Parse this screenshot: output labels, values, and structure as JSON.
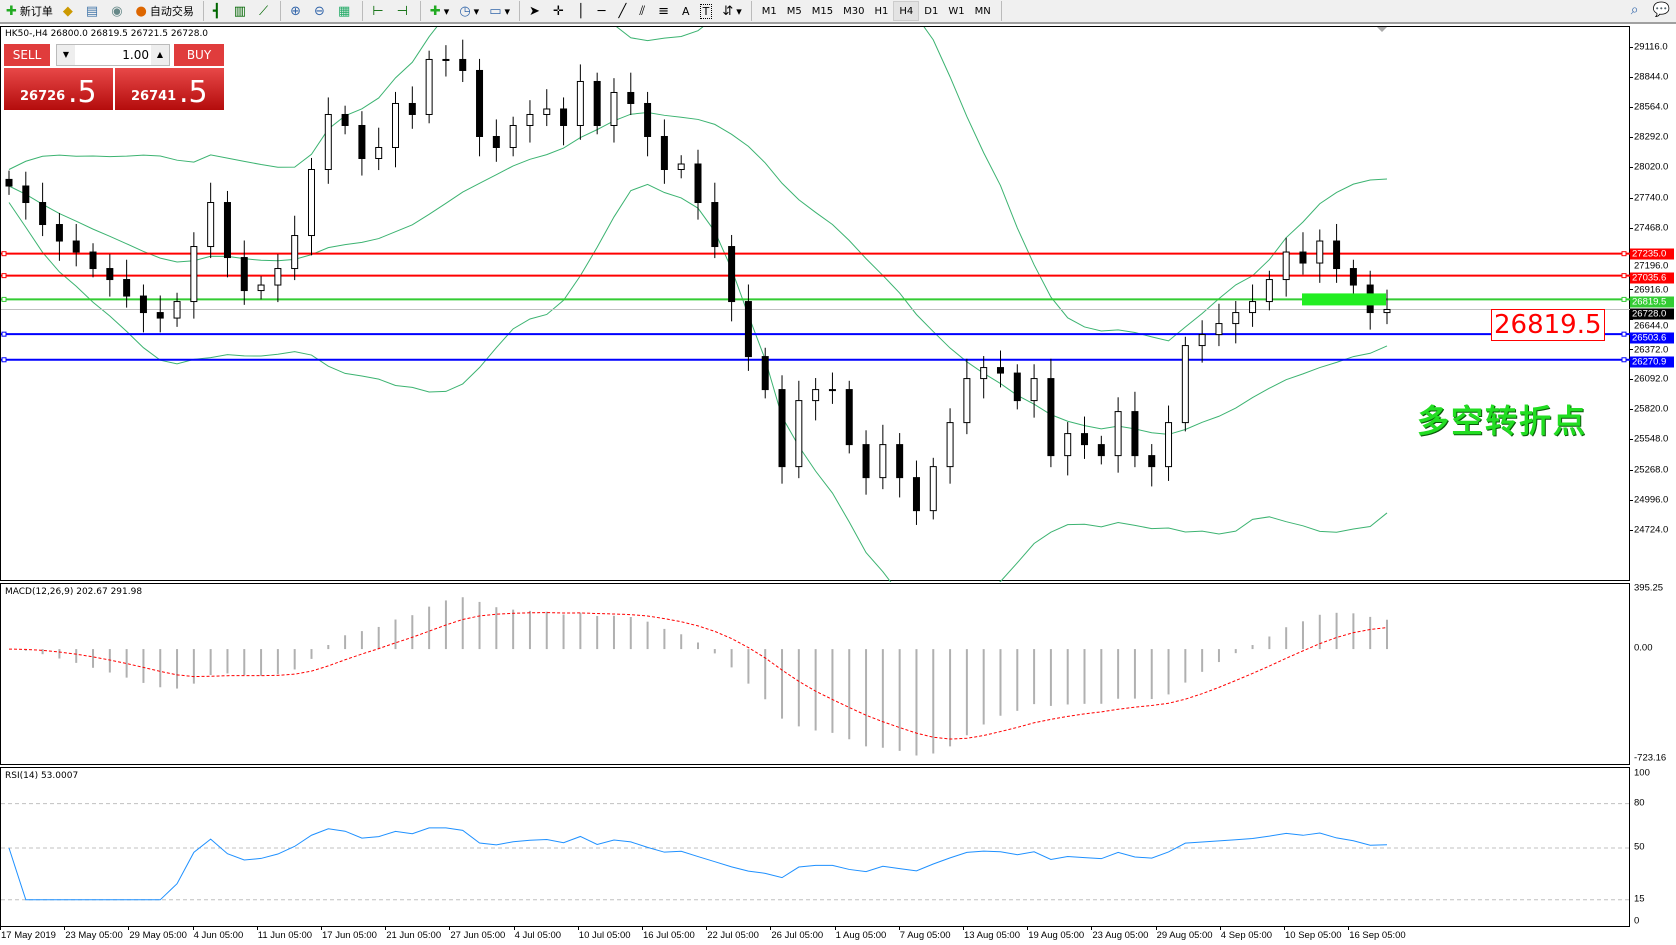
{
  "toolbar": {
    "new_order": "新订单",
    "auto_trading": "自动交易",
    "icons": [
      "new-order-icon",
      "history-center-icon",
      "market-watch-icon",
      "signals-icon",
      "auto-trading-icon",
      "bar-chart-icon",
      "candlestick-icon",
      "line-chart-icon",
      "zoom-in-icon",
      "zoom-out-icon",
      "tile-windows-icon",
      "chart-shift-icon",
      "autoscroll-icon",
      "indicators-icon",
      "periods-icon",
      "templates-icon",
      "cursor-icon",
      "crosshair-icon",
      "vertical-line-icon",
      "horizontal-line-icon",
      "trendline-icon",
      "equidistant-channel-icon",
      "fibonacci-icon",
      "text-icon",
      "text-label-icon",
      "arrows-icon",
      "search-icon",
      "chat-icon"
    ],
    "text_tool": "A",
    "label_tool": "T",
    "timeframes": [
      "M1",
      "M5",
      "M15",
      "M30",
      "H1",
      "H4",
      "D1",
      "W1",
      "MN"
    ],
    "active_timeframe": "H4"
  },
  "chart": {
    "header": "HK50-,H4  26800.0 26819.5 26721.5 26728.0",
    "trade_panel": {
      "sell_label": "SELL",
      "buy_label": "BUY",
      "lot": "1.00",
      "sell_price_main": "26726",
      "sell_price_pips": ".5",
      "buy_price_main": "26741",
      "buy_price_pips": ".5"
    },
    "price_axis": [
      "29116.0",
      "28844.0",
      "28564.0",
      "28292.0",
      "28020.0",
      "27740.0",
      "27468.0",
      "27196.0",
      "26916.0",
      "26644.0",
      "26372.0",
      "26092.0",
      "25820.0",
      "25548.0",
      "25268.0",
      "24996.0",
      "24724.0"
    ],
    "levels": [
      {
        "price": "27235.0",
        "color": "#ff0000"
      },
      {
        "price": "27035.6",
        "color": "#ff0000"
      },
      {
        "price": "26819.5",
        "color": "#33cc33"
      },
      {
        "price": "26728.0",
        "color": "#000000"
      },
      {
        "price": "26503.6",
        "color": "#0000ff"
      },
      {
        "price": "26270.9",
        "color": "#0000ff"
      }
    ],
    "price_label": "26819.5",
    "annotation": "多空转折点",
    "closes": [
      27850,
      27700,
      27500,
      27350,
      27250,
      27100,
      27000,
      26850,
      26700,
      26650,
      26800,
      27300,
      27700,
      27200,
      26900,
      26950,
      27100,
      27400,
      28000,
      28500,
      28400,
      28100,
      28200,
      28600,
      28500,
      29000,
      29000,
      28900,
      28300,
      28200,
      28400,
      28500,
      28550,
      28400,
      28800,
      28400,
      28700,
      28600,
      28300,
      28000,
      28050,
      27700,
      27300,
      26800,
      26300,
      26000,
      25300,
      25900,
      26000,
      26000,
      25500,
      25200,
      25500,
      25200,
      24900,
      25300,
      25700,
      26100,
      26200,
      26150,
      25900,
      26100,
      25400,
      25600,
      25500,
      25400,
      25800,
      25400,
      25300,
      25700,
      26400,
      26500,
      26600,
      26700,
      26800,
      27000,
      27250,
      27150,
      27350,
      27100,
      26950,
      26700,
      26728
    ],
    "bull_color": "#ffffff",
    "bear_color": "#000000",
    "band_color": "#3cb371"
  },
  "macd": {
    "title": "MACD(12,26,9) 202.67 291.98",
    "axis": [
      "395.25",
      "0.00",
      "-723.16"
    ]
  },
  "rsi": {
    "title": "RSI(14) 53.0007",
    "axis": [
      "100",
      "80",
      "50",
      "15",
      "0"
    ]
  },
  "dates": [
    "17 May 2019",
    "23 May 05:00",
    "29 May 05:00",
    "4 Jun 05:00",
    "11 Jun 05:00",
    "17 Jun 05:00",
    "21 Jun 05:00",
    "27 Jun 05:00",
    "4 Jul 05:00",
    "10 Jul 05:00",
    "16 Jul 05:00",
    "22 Jul 05:00",
    "26 Jul 05:00",
    "1 Aug 05:00",
    "7 Aug 05:00",
    "13 Aug 05:00",
    "19 Aug 05:00",
    "23 Aug 05:00",
    "29 Aug 05:00",
    "4 Sep 05:00",
    "10 Sep 05:00",
    "16 Sep 05:00"
  ]
}
